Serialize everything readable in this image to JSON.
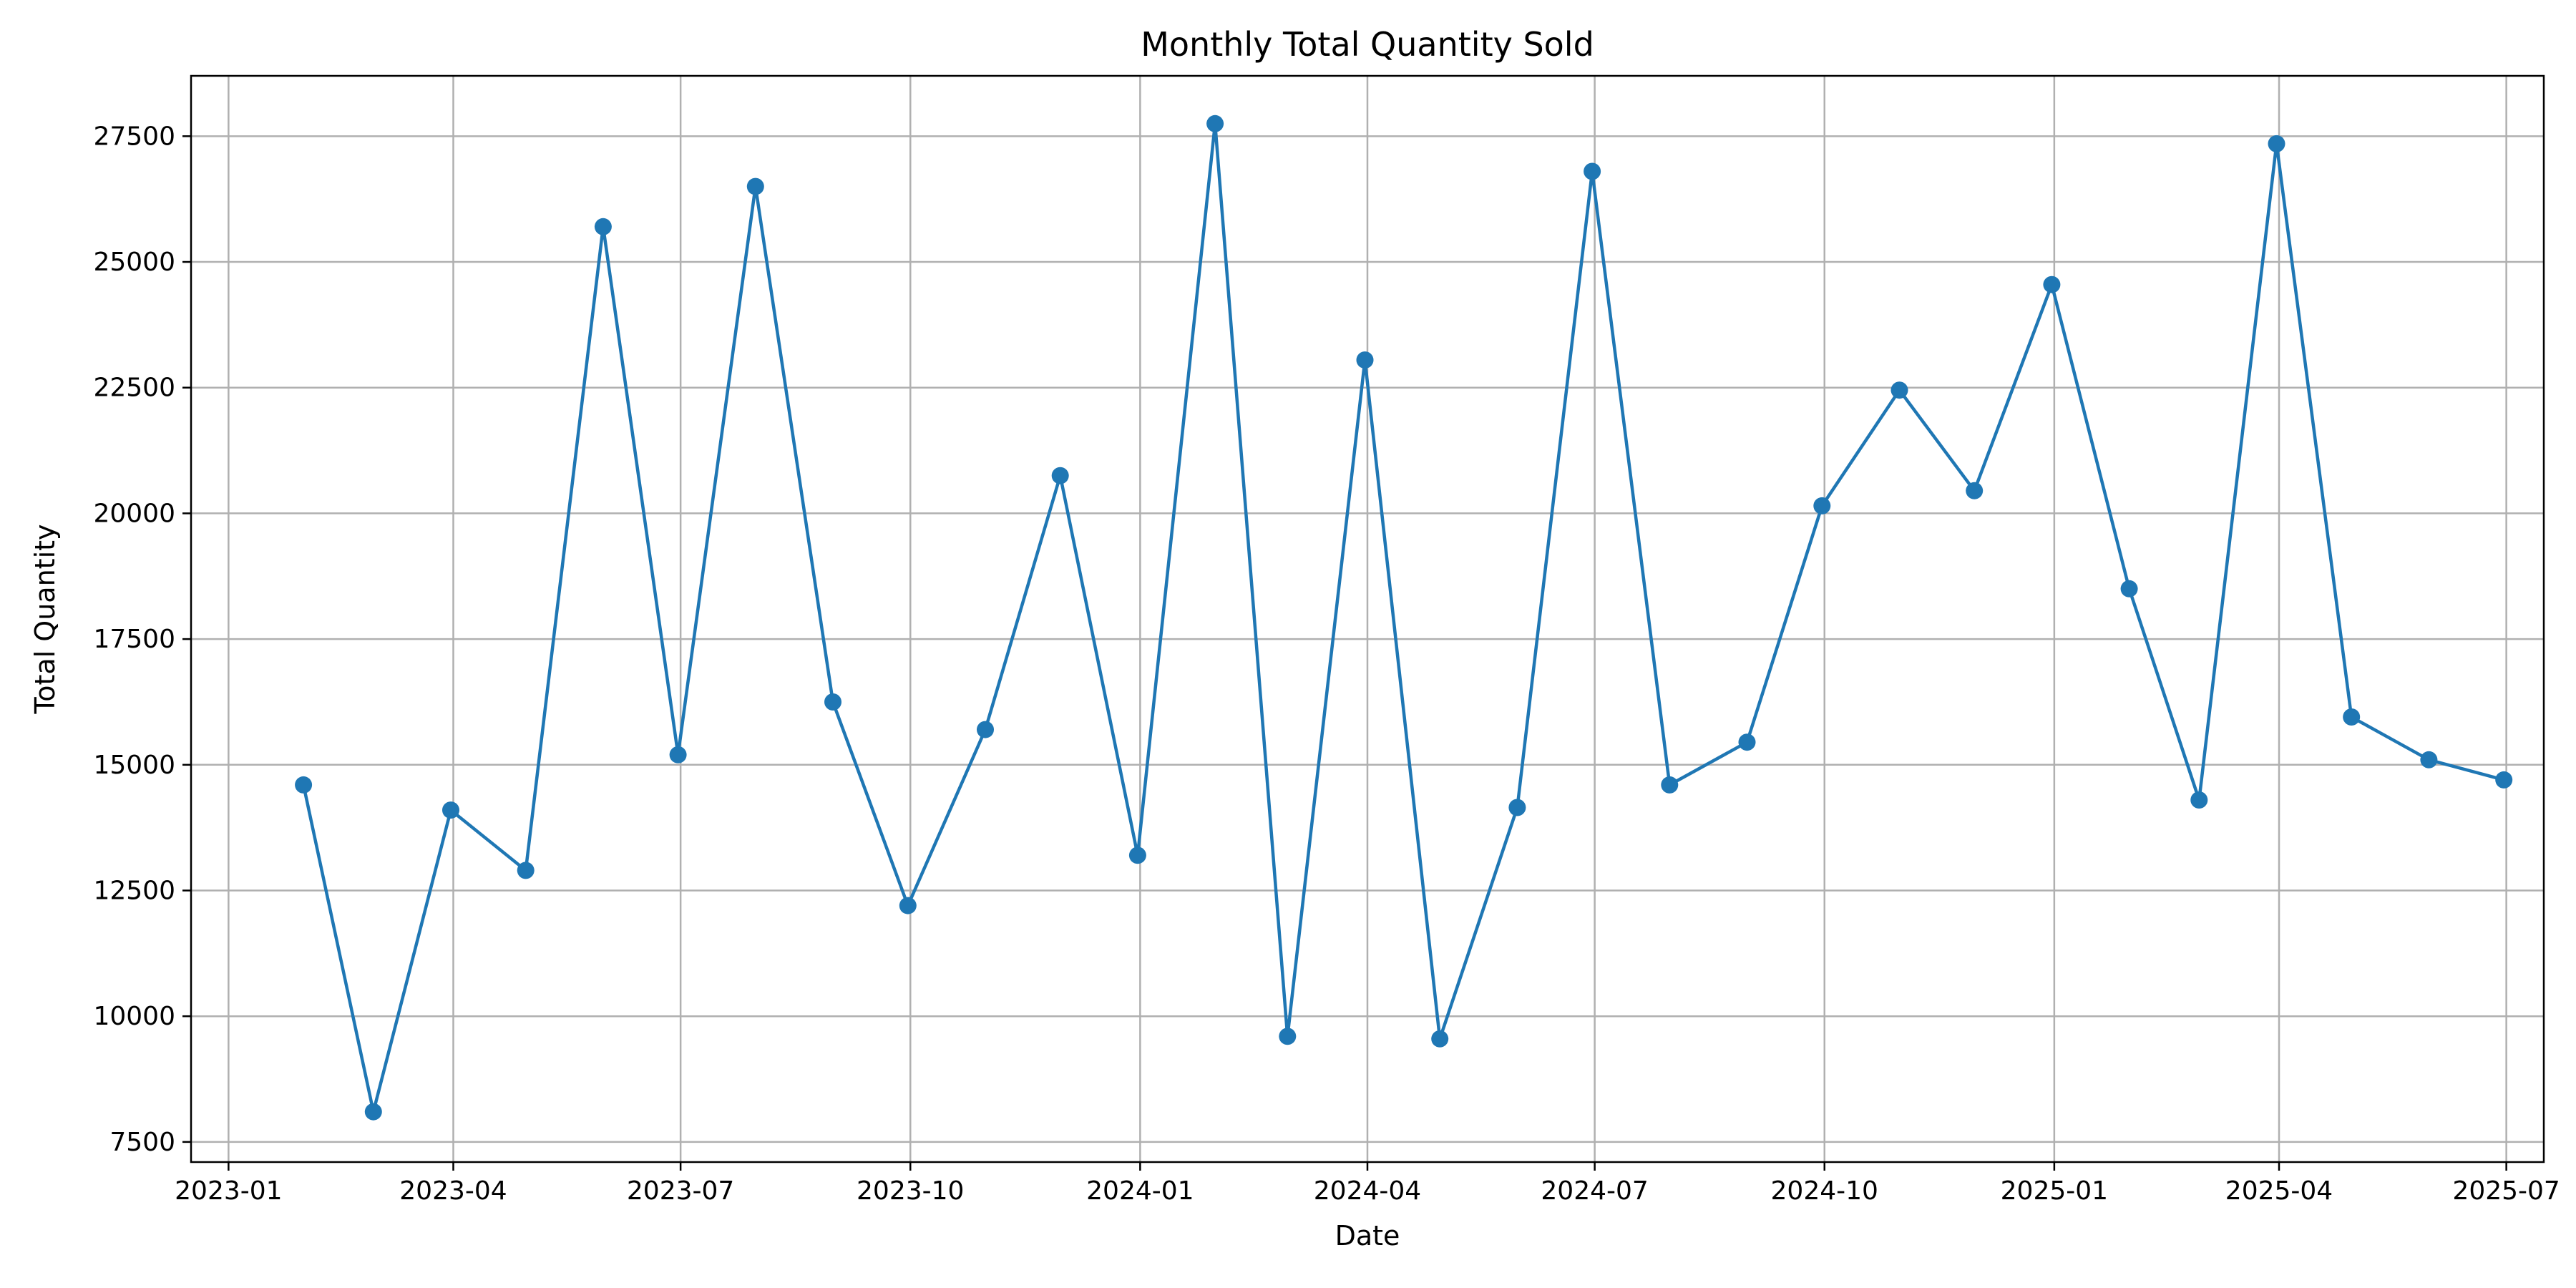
{
  "chart_data": {
    "type": "line",
    "title": "Monthly Total Quantity Sold",
    "xlabel": "Date",
    "ylabel": "Total Quantity",
    "x_ticks": [
      "2023-01",
      "2023-04",
      "2023-07",
      "2023-10",
      "2024-01",
      "2024-04",
      "2024-07",
      "2024-10",
      "2025-01",
      "2025-04",
      "2025-07"
    ],
    "y_ticks": [
      "7500",
      "10000",
      "12500",
      "15000",
      "17500",
      "20000",
      "22500",
      "25000",
      "27500"
    ],
    "xlim": [
      "2022-12-17",
      "2025-07-16"
    ],
    "ylim": [
      7100,
      28700
    ],
    "grid": true,
    "marker": "circle",
    "line_color": "#1f77b4",
    "grid_color": "#b0b0b0",
    "series": [
      {
        "x": [
          "2023-01-31",
          "2023-02-28",
          "2023-03-31",
          "2023-04-30",
          "2023-05-31",
          "2023-06-30",
          "2023-07-31",
          "2023-08-31",
          "2023-09-30",
          "2023-10-31",
          "2023-11-30",
          "2023-12-31",
          "2024-01-31",
          "2024-02-29",
          "2024-03-31",
          "2024-04-30",
          "2024-05-31",
          "2024-06-30",
          "2024-07-31",
          "2024-08-31",
          "2024-09-30",
          "2024-10-31",
          "2024-11-30",
          "2024-12-31",
          "2025-01-31",
          "2025-02-28",
          "2025-03-31",
          "2025-04-30",
          "2025-05-31",
          "2025-06-30"
        ],
        "values": [
          14600,
          8100,
          14100,
          12900,
          25700,
          15200,
          26500,
          16250,
          12200,
          15700,
          20750,
          13200,
          27750,
          9600,
          23050,
          9550,
          14150,
          26800,
          14600,
          15450,
          20150,
          22450,
          20450,
          24550,
          18500,
          14300,
          27350,
          15950,
          15100,
          14700
        ]
      }
    ]
  }
}
